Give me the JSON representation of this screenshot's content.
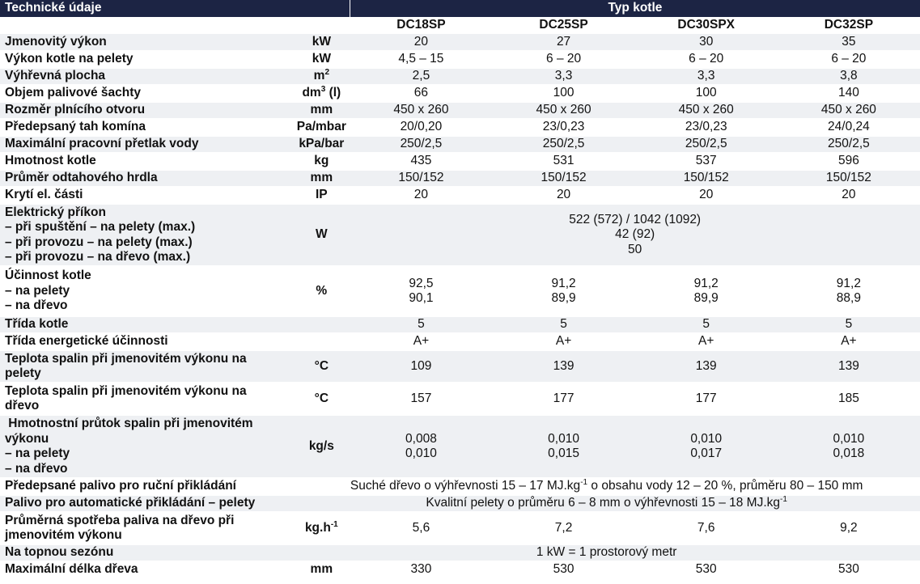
{
  "header": {
    "title": "Technické údaje",
    "type_label": "Typ kotle",
    "models": [
      "DC18SP",
      "DC25SP",
      "DC30SPX",
      "DC32SP"
    ]
  },
  "rows": {
    "jmenovity_vykon": {
      "label": "Jmenovitý výkon",
      "unit": "kW",
      "values": [
        "20",
        "27",
        "30",
        "35"
      ]
    },
    "vykon_pelety": {
      "label": "Výkon kotle na pelety",
      "unit": "kW",
      "values": [
        "4,5 – 15",
        "6 – 20",
        "6 – 20",
        "6 – 20"
      ]
    },
    "vyhrevna_plocha": {
      "label": "Výhřevná plocha",
      "unit_base": "m",
      "unit_sup": "2",
      "values": [
        "2,5",
        "3,3",
        "3,3",
        "3,8"
      ]
    },
    "objem_sachty": {
      "label": "Objem palivové šachty",
      "unit_base": "dm",
      "unit_sup": "3",
      "unit_tail": " (l)",
      "values": [
        "66",
        "100",
        "100",
        "140"
      ]
    },
    "rozmer_otvoru": {
      "label": "Rozměr plnícího otvoru",
      "unit": "mm",
      "values": [
        "450 x 260",
        "450 x 260",
        "450 x 260",
        "450 x 260"
      ]
    },
    "tah_komina": {
      "label": "Předepsaný tah komína",
      "unit": "Pa/mbar",
      "values": [
        "20/0,20",
        "23/0,23",
        "23/0,23",
        "24/0,24"
      ]
    },
    "pretlak_vody": {
      "label": "Maximální pracovní přetlak vody",
      "unit": "kPa/bar",
      "values": [
        "250/2,5",
        "250/2,5",
        "250/2,5",
        "250/2,5"
      ]
    },
    "hmotnost": {
      "label": "Hmotnost kotle",
      "unit": "kg",
      "values": [
        "435",
        "531",
        "537",
        "596"
      ]
    },
    "prumer_hrdla": {
      "label": "Průměr odtahového hrdla",
      "unit": "mm",
      "values": [
        "150/152",
        "150/152",
        "150/152",
        "150/152"
      ]
    },
    "kryti": {
      "label": "Krytí el. části",
      "unit": "IP",
      "values": [
        "20",
        "20",
        "20",
        "20"
      ]
    },
    "prikon": {
      "label_lines": [
        "Elektrický příkon",
        "– při spuštění – na pelety (max.)",
        "– při provozu – na pelety (max.)",
        "– při provozu – na dřevo (max.)"
      ],
      "unit": "W",
      "value_lines": [
        "522 (572) / 1042 (1092)",
        "42 (92)",
        "50"
      ]
    },
    "ucinnost": {
      "label_lines": [
        "Účinnost kotle",
        "– na pelety",
        "– na dřevo"
      ],
      "unit": "%",
      "values": [
        [
          "92,5",
          "90,1"
        ],
        [
          "91,2",
          "89,9"
        ],
        [
          "91,2",
          "89,9"
        ],
        [
          "91,2",
          "88,9"
        ]
      ]
    },
    "trida_kotle": {
      "label": "Třída kotle",
      "unit": "",
      "values": [
        "5",
        "5",
        "5",
        "5"
      ]
    },
    "trida_energ": {
      "label": "Třída energetické účinnosti",
      "unit": "",
      "values": [
        "A+",
        "A+",
        "A+",
        "A+"
      ]
    },
    "teplota_pelety": {
      "label_lines": [
        "Teplota spalin při jmenovitém výkonu na",
        "pelety"
      ],
      "unit": "°C",
      "values": [
        "109",
        "139",
        "139",
        "139"
      ]
    },
    "teplota_drevo": {
      "label_lines": [
        "Teplota spalin při jmenovitém výkonu na",
        "dřevo"
      ],
      "unit": "°C",
      "values": [
        "157",
        "177",
        "177",
        "185"
      ]
    },
    "hmotnostni_prutok": {
      "label_lines": [
        " Hmotnostní průtok spalin při jmenovitém",
        "výkonu",
        "– na pelety",
        "– na dřevo"
      ],
      "unit": "kg/s",
      "values": [
        [
          "0,008",
          "0,010"
        ],
        [
          "0,010",
          "0,015"
        ],
        [
          "0,010",
          "0,017"
        ],
        [
          "0,010",
          "0,018"
        ]
      ]
    },
    "palivo_rucni": {
      "label": "Předepsané palivo pro ruční přikládání",
      "text_a": "Suché dřevo o výhřevnosti 15 – 17 MJ.kg",
      "text_sup": "-1",
      "text_b": " o obsahu vody 12 – 20 %, průměru 80 – 150 mm"
    },
    "palivo_auto": {
      "label": "Palivo pro automatické přikládání – pelety",
      "text_a": "Kvalitní pelety o průměru 6 – 8 mm o výhřevnosti 15 – 18 MJ.kg",
      "text_sup": "-1"
    },
    "spotreba": {
      "label_lines": [
        "Průměrná spotřeba paliva na dřevo při",
        "jmenovitém výkonu"
      ],
      "unit_base": "kg.h",
      "unit_sup": "-1",
      "values": [
        "5,6",
        "7,2",
        "7,6",
        "9,2"
      ]
    },
    "sezona": {
      "label": "Na topnou sezónu",
      "text": "1 kW = 1 prostorový metr"
    },
    "delka_dreva": {
      "label": "Maximální délka dřeva",
      "unit": "mm",
      "values": [
        "330",
        "530",
        "530",
        "530"
      ]
    }
  }
}
